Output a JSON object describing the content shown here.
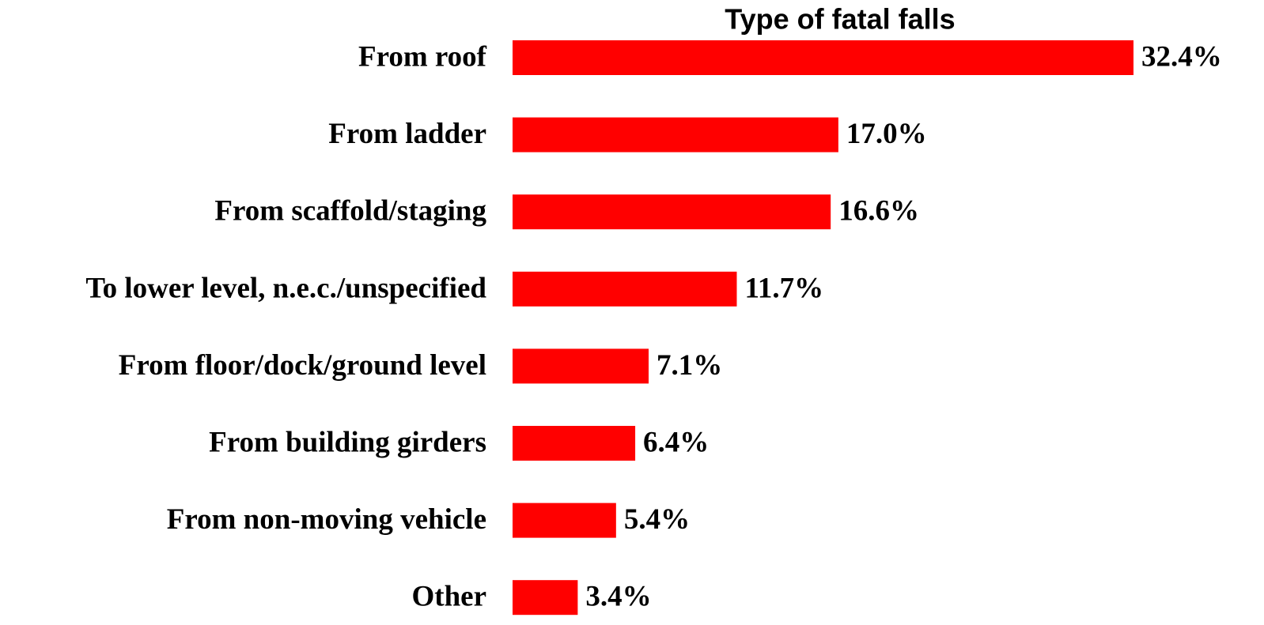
{
  "chart_data": {
    "type": "bar",
    "orientation": "horizontal",
    "title": "Type of fatal falls",
    "categories": [
      "From roof",
      "From ladder",
      "From scaffold/staging",
      "To lower level, n.e.c./unspecified",
      "From floor/dock/ground level",
      "From building girders",
      "From non-moving vehicle",
      "Other"
    ],
    "values": [
      32.4,
      17.0,
      16.6,
      11.7,
      7.1,
      6.4,
      5.4,
      3.4
    ],
    "value_labels": [
      "32.4%",
      "17.0%",
      "16.6%",
      "11.7%",
      "7.1%",
      "6.4%",
      "5.4%",
      "3.4%"
    ],
    "color": "#ff0000"
  }
}
